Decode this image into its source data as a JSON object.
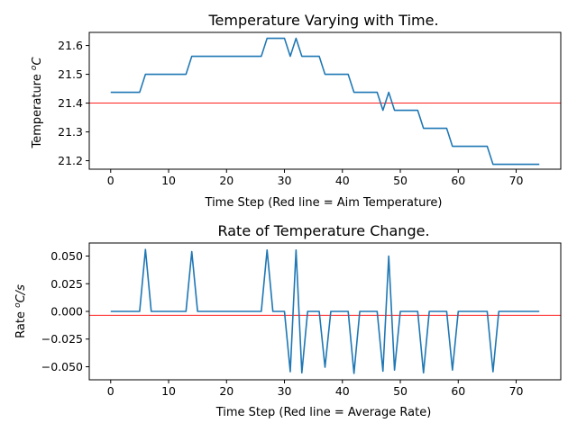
{
  "colors": {
    "series": "#1f77b4",
    "reference": "#ff0000",
    "axis": "#000000",
    "background": "#ffffff"
  },
  "chart_data": [
    {
      "type": "line",
      "title": "Temperature Varying with Time.",
      "xlabel": "Time Step (Red line = Aim Temperature)",
      "ylabel_parts": [
        "Temperature ",
        "o",
        "C"
      ],
      "xlim": [
        -3.7,
        77.7
      ],
      "ylim": [
        21.1705,
        21.6455
      ],
      "xticks": [
        0,
        10,
        20,
        30,
        40,
        50,
        60,
        70
      ],
      "xtick_labels": [
        "0",
        "10",
        "20",
        "30",
        "40",
        "50",
        "60",
        "70"
      ],
      "yticks": [
        21.2,
        21.3,
        21.4,
        21.5,
        21.6
      ],
      "ytick_labels": [
        "21.2",
        "21.3",
        "21.4",
        "21.5",
        "21.6"
      ],
      "reference_line": {
        "y": 21.4
      },
      "grid": false,
      "x": [
        0,
        1,
        2,
        3,
        4,
        5,
        6,
        7,
        8,
        9,
        10,
        11,
        12,
        13,
        14,
        15,
        16,
        17,
        18,
        19,
        20,
        21,
        22,
        23,
        24,
        25,
        26,
        27,
        28,
        29,
        30,
        31,
        32,
        33,
        34,
        35,
        36,
        37,
        38,
        39,
        40,
        41,
        42,
        43,
        44,
        45,
        46,
        47,
        48,
        49,
        50,
        51,
        52,
        53,
        54,
        55,
        56,
        57,
        58,
        59,
        60,
        61,
        62,
        63,
        64,
        65,
        66,
        67,
        68,
        69,
        70,
        71,
        72,
        73,
        74
      ],
      "y": [
        21.4375,
        21.4375,
        21.4375,
        21.4375,
        21.4375,
        21.4375,
        21.5,
        21.5,
        21.5,
        21.5,
        21.5,
        21.5,
        21.5,
        21.5,
        21.5625,
        21.5625,
        21.5625,
        21.5625,
        21.5625,
        21.5625,
        21.5625,
        21.5625,
        21.5625,
        21.5625,
        21.5625,
        21.5625,
        21.5625,
        21.625,
        21.625,
        21.625,
        21.625,
        21.5625,
        21.625,
        21.5625,
        21.5625,
        21.5625,
        21.5625,
        21.5,
        21.5,
        21.5,
        21.5,
        21.5,
        21.4375,
        21.4375,
        21.4375,
        21.4375,
        21.4375,
        21.375,
        21.4375,
        21.375,
        21.375,
        21.375,
        21.375,
        21.375,
        21.3125,
        21.3125,
        21.3125,
        21.3125,
        21.3125,
        21.25,
        21.25,
        21.25,
        21.25,
        21.25,
        21.25,
        21.25,
        21.1875,
        21.1875,
        21.1875,
        21.1875,
        21.1875,
        21.1875,
        21.1875,
        21.1875,
        21.1875
      ]
    },
    {
      "type": "line",
      "title": "Rate of Temperature Change.",
      "xlabel": "Time Step (Red line = Average Rate)",
      "ylabel_parts": [
        "Rate ",
        "o",
        "C/s"
      ],
      "xlim": [
        -3.7,
        77.7
      ],
      "ylim": [
        -0.0618,
        0.0618
      ],
      "xticks": [
        0,
        10,
        20,
        30,
        40,
        50,
        60,
        70
      ],
      "xtick_labels": [
        "0",
        "10",
        "20",
        "30",
        "40",
        "50",
        "60",
        "70"
      ],
      "yticks": [
        -0.05,
        -0.025,
        0.0,
        0.025,
        0.05
      ],
      "ytick_labels": [
        "−0.050",
        "−0.025",
        "0.000",
        "0.025",
        "0.050"
      ],
      "reference_line": {
        "y": -0.0035
      },
      "grid": false,
      "x": [
        0,
        1,
        2,
        3,
        4,
        5,
        6,
        7,
        8,
        9,
        10,
        11,
        12,
        13,
        14,
        15,
        16,
        17,
        18,
        19,
        20,
        21,
        22,
        23,
        24,
        25,
        26,
        27,
        28,
        29,
        30,
        31,
        32,
        33,
        34,
        35,
        36,
        37,
        38,
        39,
        40,
        41,
        42,
        43,
        44,
        45,
        46,
        47,
        48,
        49,
        50,
        51,
        52,
        53,
        54,
        55,
        56,
        57,
        58,
        59,
        60,
        61,
        62,
        63,
        64,
        65,
        66,
        67,
        68,
        69,
        70,
        71,
        72,
        73,
        74
      ],
      "y": [
        0,
        0,
        0,
        0,
        0,
        0,
        0.056,
        0,
        0,
        0,
        0,
        0,
        0,
        0,
        0.054,
        0,
        0,
        0,
        0,
        0,
        0,
        0,
        0,
        0,
        0,
        0,
        0,
        0.0555,
        0,
        0,
        0,
        -0.0545,
        0.0555,
        -0.0555,
        0,
        0,
        0,
        -0.0505,
        0,
        0,
        0,
        0,
        -0.056,
        0,
        0,
        0,
        0,
        -0.054,
        0.05,
        -0.053,
        0,
        0,
        0,
        0,
        -0.0555,
        0,
        0,
        0,
        0,
        -0.053,
        0,
        0,
        0,
        0,
        0,
        0,
        -0.0545,
        0,
        0,
        0,
        0,
        0,
        0,
        0,
        0
      ]
    }
  ]
}
